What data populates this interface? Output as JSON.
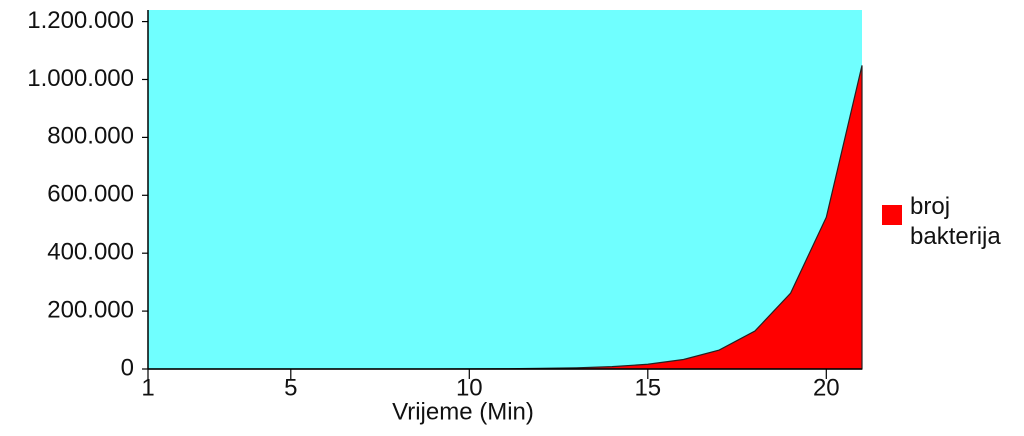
{
  "chart_data": {
    "type": "area",
    "x_label": "Vrijeme (Min)",
    "x": [
      1,
      2,
      3,
      4,
      5,
      6,
      7,
      8,
      9,
      10,
      11,
      12,
      13,
      14,
      15,
      16,
      17,
      18,
      19,
      20,
      21
    ],
    "series": [
      {
        "name": "broj bakterija",
        "color": "#ff0000",
        "values": [
          1,
          2,
          4,
          8,
          16,
          32,
          64,
          128,
          256,
          512,
          1024,
          2048,
          4096,
          8192,
          16384,
          32768,
          65536,
          131072,
          262144,
          524288,
          1048576
        ]
      }
    ],
    "xlim": [
      1,
      21
    ],
    "xticks": [
      1,
      5,
      10,
      15,
      20
    ],
    "ylim": [
      0,
      1240000
    ],
    "yticks": [
      0,
      {
        "value": 200000,
        "label": "200.000"
      },
      {
        "value": 400000,
        "label": "400.000"
      },
      {
        "value": 600000,
        "label": "600.000"
      },
      {
        "value": 800000,
        "label": "800.000"
      },
      {
        "value": 1000000,
        "label": "1.000.000"
      },
      {
        "value": 1200000,
        "label": "1.200.000"
      }
    ],
    "plot_background": "#70ffff",
    "legend": "right"
  }
}
